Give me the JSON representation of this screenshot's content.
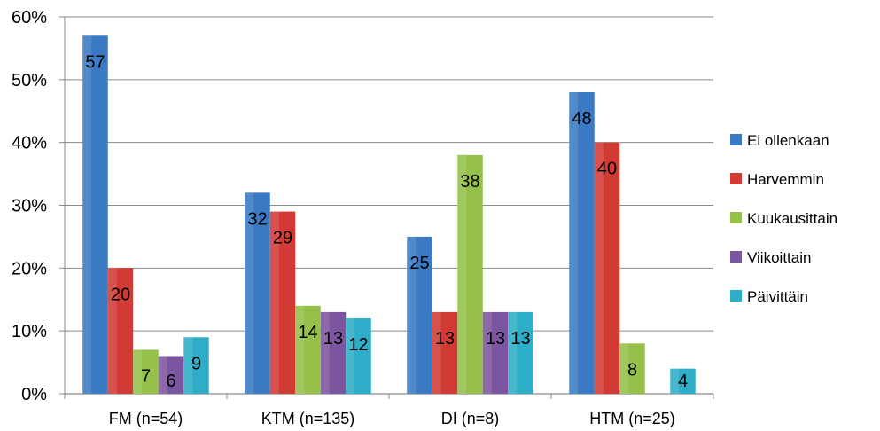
{
  "chart_data": {
    "type": "bar",
    "categories": [
      "FM (n=54)",
      "KTM (n=135)",
      "DI (n=8)",
      "HTM (n=25)"
    ],
    "series": [
      {
        "name": "Ei ollenkaan",
        "color": "#3a7ac4",
        "values": [
          57,
          32,
          25,
          48
        ]
      },
      {
        "name": "Harvemmin",
        "color": "#d23b34",
        "values": [
          20,
          29,
          13,
          40
        ]
      },
      {
        "name": "Kuukausittain",
        "color": "#95c049",
        "values": [
          7,
          14,
          38,
          8
        ]
      },
      {
        "name": "Viikoittain",
        "color": "#7b55a0",
        "values": [
          6,
          13,
          13,
          null
        ]
      },
      {
        "name": "Päivittäin",
        "color": "#2eadc8",
        "values": [
          9,
          12,
          13,
          4
        ]
      }
    ],
    "y_ticks": [
      "0%",
      "10%",
      "20%",
      "30%",
      "40%",
      "50%",
      "60%"
    ],
    "ylim": [
      0,
      60
    ],
    "grid": true,
    "legend_position": "right",
    "data_labels": true
  }
}
